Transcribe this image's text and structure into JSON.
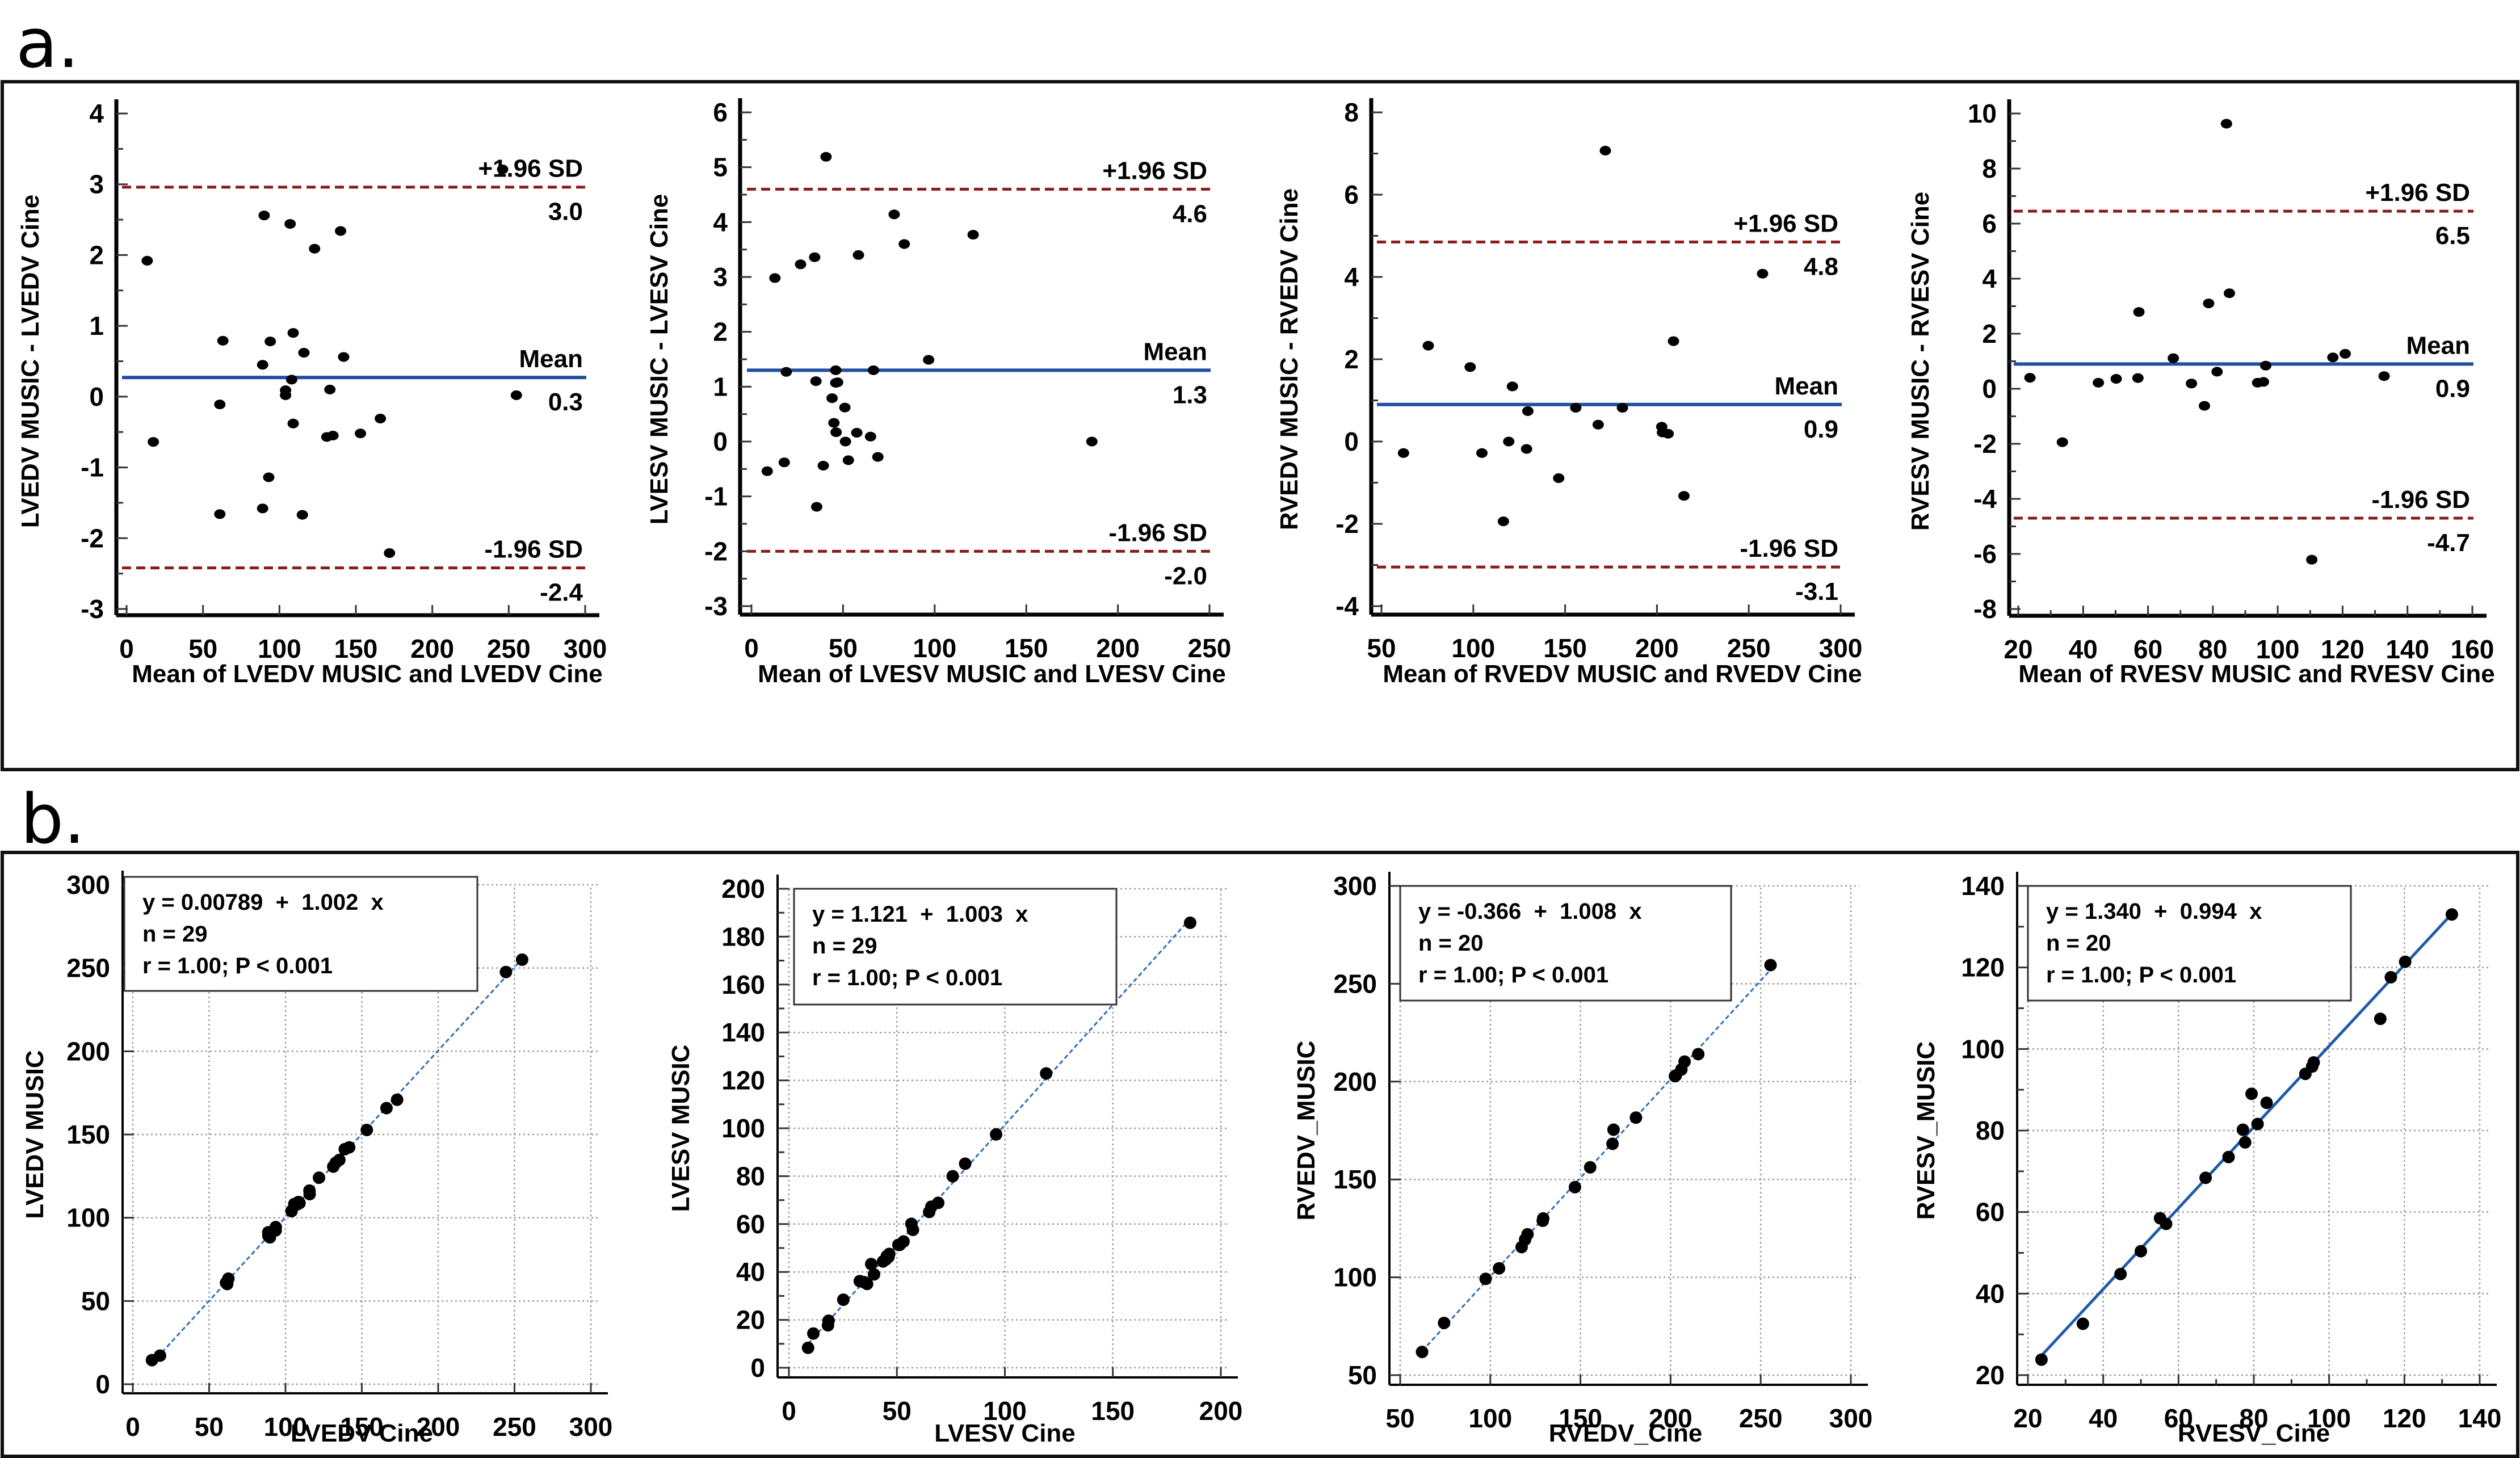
{
  "figure": {
    "panel_a_letter": "a.",
    "panel_b_letter": "b."
  },
  "colors": {
    "sd_line": "#8b1a1a",
    "mean_line": "#1f4fa0",
    "regression_line": "#2e6db8",
    "points": "#000000"
  },
  "chart_data": [
    {
      "id": "a1",
      "type": "scatter",
      "subtype": "bland-altman",
      "xlabel": "Mean of LVEDV MUSIC and LVEDV Cine",
      "ylabel": "LVEDV MUSIC - LVEDV Cine",
      "xlim": [
        0,
        300
      ],
      "ylim": [
        -3,
        4
      ],
      "xticks": [
        0,
        50,
        100,
        150,
        200,
        250,
        300
      ],
      "yticks": [
        -3,
        -2,
        -1,
        0,
        1,
        2,
        3,
        4
      ],
      "y_minor_step": 0.5,
      "mean": {
        "label": "Mean",
        "value": 0.27,
        "value_label": "0.3"
      },
      "upper_loa": {
        "label": "+1.96 SD",
        "value": 2.96,
        "value_label": "3.0"
      },
      "lower_loa": {
        "label": "-1.96 SD",
        "value": -2.42,
        "value_label": "-2.4"
      },
      "points": [
        [
          13.5,
          1.92
        ],
        [
          17.5,
          -0.64
        ],
        [
          61,
          -0.11
        ],
        [
          61,
          -1.66
        ],
        [
          63,
          0.79
        ],
        [
          90,
          2.56
        ],
        [
          89,
          0.45
        ],
        [
          89,
          -1.58
        ],
        [
          93,
          -1.14
        ],
        [
          94,
          0.78
        ],
        [
          104,
          0.09
        ],
        [
          104,
          0.02
        ],
        [
          107,
          2.44
        ],
        [
          108,
          0.24
        ],
        [
          109,
          0.9
        ],
        [
          109,
          -0.38
        ],
        [
          115,
          -1.67
        ],
        [
          116,
          0.62
        ],
        [
          123,
          2.09
        ],
        [
          131,
          -0.57
        ],
        [
          135,
          -0.55
        ],
        [
          133,
          0.1
        ],
        [
          140,
          2.34
        ],
        [
          142,
          0.56
        ],
        [
          153,
          -0.52
        ],
        [
          166,
          -0.31
        ],
        [
          172,
          -2.21
        ],
        [
          246,
          3.21
        ],
        [
          255,
          0.02
        ]
      ]
    },
    {
      "id": "a2",
      "type": "scatter",
      "subtype": "bland-altman",
      "xlabel": "Mean of LVESV MUSIC and LVESV Cine",
      "ylabel": "LVESV MUSIC - LVESV Cine",
      "xlim": [
        0,
        250
      ],
      "ylim": [
        -3,
        6
      ],
      "xticks": [
        0,
        50,
        100,
        150,
        200,
        250
      ],
      "yticks": [
        -3,
        -2,
        -1,
        0,
        1,
        2,
        3,
        4,
        5,
        6
      ],
      "y_minor_step": 0.5,
      "mean": {
        "label": "Mean",
        "value": 1.3,
        "value_label": "1.3"
      },
      "upper_loa": {
        "label": "+1.96 SD",
        "value": 4.6,
        "value_label": "4.6"
      },
      "lower_loa": {
        "label": "-1.96 SD",
        "value": -2.0,
        "value_label": "-2.0"
      },
      "points": [
        [
          8.6,
          -0.54
        ],
        [
          12.8,
          2.98
        ],
        [
          17.9,
          -0.38
        ],
        [
          19,
          1.27
        ],
        [
          26.8,
          3.23
        ],
        [
          34.5,
          3.36
        ],
        [
          35.2,
          1.1
        ],
        [
          35.6,
          -1.19
        ],
        [
          39.2,
          -0.44
        ],
        [
          40.7,
          5.19
        ],
        [
          44,
          0.79
        ],
        [
          45,
          0.34
        ],
        [
          46,
          1.3
        ],
        [
          46,
          1.07
        ],
        [
          46.2,
          0.17
        ],
        [
          47,
          1.08
        ],
        [
          51,
          0.62
        ],
        [
          51.3,
          0.0
        ],
        [
          52.9,
          -0.34
        ],
        [
          57.5,
          0.16
        ],
        [
          58.4,
          3.4
        ],
        [
          65,
          0.09
        ],
        [
          66.6,
          1.3
        ],
        [
          69,
          -0.28
        ],
        [
          77.9,
          4.14
        ],
        [
          83.4,
          3.6
        ],
        [
          96.7,
          1.49
        ],
        [
          121,
          3.77
        ],
        [
          185.8,
          0.0
        ]
      ]
    },
    {
      "id": "a3",
      "type": "scatter",
      "subtype": "bland-altman",
      "xlabel": "Mean of RVEDV MUSIC and RVEDV Cine",
      "ylabel": "RVEDV MUSIC - RVEDV Cine",
      "xlim": [
        50,
        300
      ],
      "ylim": [
        -4,
        8
      ],
      "xticks": [
        50,
        100,
        150,
        200,
        250,
        300
      ],
      "yticks": [
        -4,
        -2,
        0,
        2,
        4,
        6,
        8
      ],
      "y_minor_step": 1,
      "mean": {
        "label": "Mean",
        "value": 0.9,
        "value_label": "0.9"
      },
      "upper_loa": {
        "label": "+1.96 SD",
        "value": 4.85,
        "value_label": "4.8"
      },
      "lower_loa": {
        "label": "-1.96 SD",
        "value": -3.05,
        "value_label": "-3.1"
      },
      "points": [
        [
          62,
          -0.28
        ],
        [
          75.5,
          2.33
        ],
        [
          98.3,
          1.81
        ],
        [
          104.7,
          -0.28
        ],
        [
          116.4,
          -1.94
        ],
        [
          119.3,
          0.0
        ],
        [
          121.3,
          1.34
        ],
        [
          129,
          -0.18
        ],
        [
          129.7,
          0.74
        ],
        [
          146.5,
          -0.89
        ],
        [
          155.8,
          0.82
        ],
        [
          168,
          0.41
        ],
        [
          171.9,
          7.07
        ],
        [
          181.2,
          0.82
        ],
        [
          202.6,
          0.36
        ],
        [
          203,
          0.22
        ],
        [
          206.1,
          0.19
        ],
        [
          209,
          2.44
        ],
        [
          214.7,
          -1.32
        ],
        [
          257.5,
          4.08
        ]
      ]
    },
    {
      "id": "a4",
      "type": "scatter",
      "subtype": "bland-altman",
      "xlabel": "Mean of RVESV MUSIC and RVESV Cine",
      "ylabel": "RVESV MUSIC - RVESV Cine",
      "xlim": [
        20,
        160
      ],
      "ylim": [
        -8,
        10
      ],
      "xticks": [
        20,
        40,
        60,
        80,
        100,
        120,
        140,
        160
      ],
      "x_minor_step": 10,
      "yticks": [
        -8,
        -6,
        -4,
        -2,
        0,
        2,
        4,
        6,
        8,
        10
      ],
      "y_minor_step": 1,
      "mean": {
        "label": "Mean",
        "value": 0.9,
        "value_label": "0.9"
      },
      "upper_loa": {
        "label": "+1.96 SD",
        "value": 6.45,
        "value_label": "6.5"
      },
      "lower_loa": {
        "label": "-1.96 SD",
        "value": -4.7,
        "value_label": "-4.7"
      },
      "points": [
        [
          23.6,
          0.4
        ],
        [
          33.6,
          -1.94
        ],
        [
          44.7,
          0.22
        ],
        [
          50.2,
          0.36
        ],
        [
          56.9,
          0.39
        ],
        [
          57.2,
          2.79
        ],
        [
          67.8,
          1.11
        ],
        [
          73.4,
          0.19
        ],
        [
          77.4,
          -0.62
        ],
        [
          78.7,
          3.1
        ],
        [
          81.3,
          0.62
        ],
        [
          84.2,
          9.63
        ],
        [
          85.1,
          3.47
        ],
        [
          93.8,
          0.22
        ],
        [
          95.6,
          0.25
        ],
        [
          96.3,
          0.84
        ],
        [
          110.5,
          -6.21
        ],
        [
          117,
          1.14
        ],
        [
          120.8,
          1.27
        ],
        [
          132.8,
          0.46
        ]
      ]
    },
    {
      "id": "b1",
      "type": "scatter",
      "subtype": "regression",
      "xlabel": "LVEDV Cine",
      "ylabel": "LVEDV MUSIC",
      "xlim": [
        0,
        300
      ],
      "ylim": [
        0,
        300
      ],
      "xticks": [
        0,
        50,
        100,
        150,
        200,
        250,
        300
      ],
      "yticks": [
        0,
        50,
        100,
        150,
        200,
        250,
        300
      ],
      "grid": true,
      "regression": {
        "intercept": 0.00789,
        "slope": 1.002,
        "style": "dashed"
      },
      "stats": [
        "y = 0.00789  +  1.002  x",
        "n = 29",
        "r = 1.00; P < 0.001"
      ],
      "source": "a1"
    },
    {
      "id": "b2",
      "type": "scatter",
      "subtype": "regression",
      "xlabel": "LVESV Cine",
      "ylabel": "LVESV MUSIC",
      "xlim": [
        0,
        200
      ],
      "ylim": [
        0,
        200
      ],
      "xticks": [
        0,
        50,
        100,
        150,
        200
      ],
      "yticks": [
        0,
        20,
        40,
        60,
        80,
        100,
        120,
        140,
        160,
        180,
        200
      ],
      "y_minor_step": 10,
      "grid": true,
      "regression": {
        "intercept": 1.121,
        "slope": 1.003,
        "style": "dashed"
      },
      "stats": [
        "y = 1.121  +  1.003  x",
        "n = 29",
        "r = 1.00; P < 0.001"
      ],
      "source": "a2"
    },
    {
      "id": "b3",
      "type": "scatter",
      "subtype": "regression",
      "xlabel": "RVEDV_Cine",
      "ylabel": "RVEDV_MUSIC",
      "xlim": [
        50,
        300
      ],
      "ylim": [
        50,
        300
      ],
      "xticks": [
        50,
        100,
        150,
        200,
        250,
        300
      ],
      "yticks": [
        50,
        100,
        150,
        200,
        250,
        300
      ],
      "grid": true,
      "regression": {
        "intercept": -0.366,
        "slope": 1.008,
        "style": "dashed"
      },
      "stats": [
        "y = -0.366  +  1.008  x",
        "n = 20",
        "r = 1.00; P < 0.001"
      ],
      "source": "a3"
    },
    {
      "id": "b4",
      "type": "scatter",
      "subtype": "regression",
      "xlabel": "RVESV_Cine",
      "ylabel": "RVESV_MUSIC",
      "xlim": [
        20,
        140
      ],
      "ylim": [
        20,
        140
      ],
      "xticks": [
        20,
        40,
        60,
        80,
        100,
        120,
        140
      ],
      "x_minor_step": 10,
      "yticks": [
        20,
        40,
        60,
        80,
        100,
        120,
        140
      ],
      "y_minor_step": 10,
      "grid": true,
      "regression": {
        "intercept": 1.34,
        "slope": 0.994,
        "style": "solid"
      },
      "stats": [
        "y = 1.340  +  0.994  x",
        "n = 20",
        "r = 1.00; P < 0.001"
      ],
      "points": [
        [
          23.6,
          23.8
        ],
        [
          34.6,
          32.6
        ],
        [
          44.6,
          44.8
        ],
        [
          50.0,
          50.4
        ],
        [
          55.1,
          58.5
        ],
        [
          56.7,
          57.1
        ],
        [
          67.2,
          68.4
        ],
        [
          73.3,
          73.5
        ],
        [
          77.7,
          77.1
        ],
        [
          77.1,
          80.2
        ],
        [
          81.0,
          81.6
        ],
        [
          79.4,
          89.0
        ],
        [
          83.4,
          86.8
        ],
        [
          93.7,
          93.9
        ],
        [
          95.5,
          95.7
        ],
        [
          95.9,
          96.7
        ],
        [
          113.6,
          107.4
        ],
        [
          116.4,
          117.6
        ],
        [
          120.2,
          121.4
        ],
        [
          132.6,
          133.0
        ]
      ]
    }
  ]
}
